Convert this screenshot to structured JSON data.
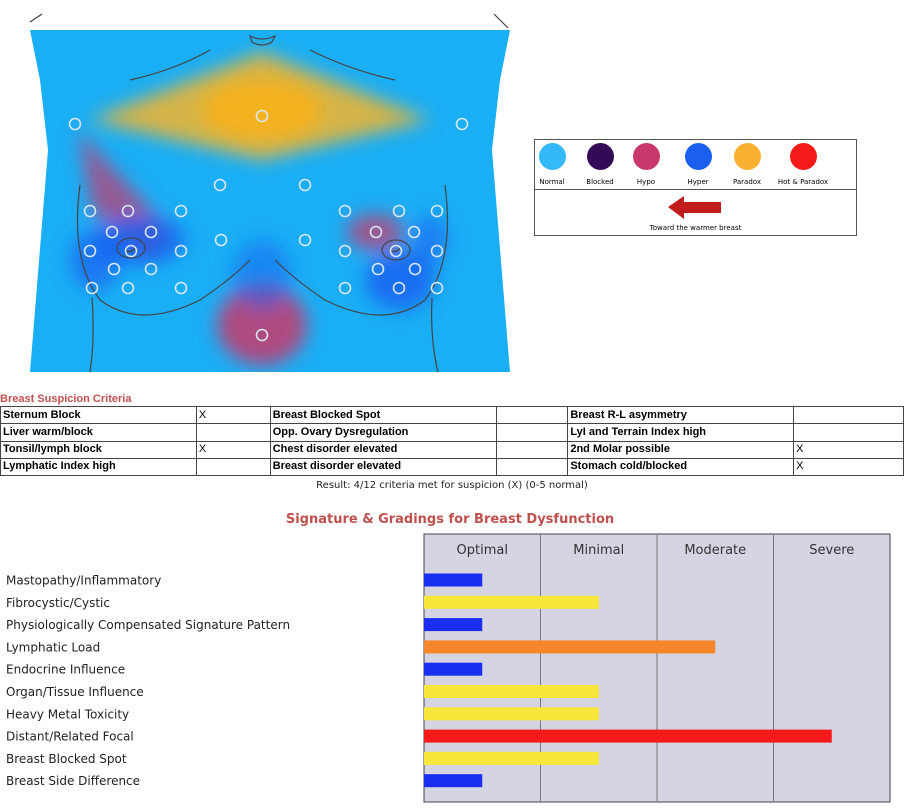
{
  "legend": {
    "items": [
      {
        "label": "Normal",
        "color": "#33b8f8"
      },
      {
        "label": "Blocked",
        "color": "#330a55"
      },
      {
        "label": "Hypo",
        "color": "#c8386c"
      },
      {
        "label": "Hyper",
        "color": "#1a5ff0"
      },
      {
        "label": "Paradox",
        "color": "#fbb02f"
      },
      {
        "label": "Hot & Paradox",
        "color": "#f41a1a"
      }
    ],
    "arrow_caption": "Toward the warmer breast",
    "arrow_icon": "left-arrow-icon",
    "arrow_color": "#c21d1d"
  },
  "thermogram": {
    "base_color": "#1aaef5"
  },
  "criteria": {
    "title": "Breast Suspicion Criteria",
    "rows": [
      [
        {
          "label": "Sternum Block",
          "mark": "X"
        },
        {
          "label": "Breast Blocked Spot",
          "mark": ""
        },
        {
          "label": "Breast R-L asymmetry",
          "mark": ""
        }
      ],
      [
        {
          "label": "Liver warm/block",
          "mark": ""
        },
        {
          "label": "Opp. Ovary Dysregulation",
          "mark": ""
        },
        {
          "label": "LyI and Terrain Index high",
          "mark": ""
        }
      ],
      [
        {
          "label": "Tonsil/lymph block",
          "mark": "X"
        },
        {
          "label": "Chest disorder elevated",
          "mark": ""
        },
        {
          "label": "2nd Molar possible",
          "mark": "X"
        }
      ],
      [
        {
          "label": "Lymphatic Index high",
          "mark": ""
        },
        {
          "label": "Breast disorder elevated",
          "mark": ""
        },
        {
          "label": "Stomach cold/blocked",
          "mark": "X"
        }
      ]
    ],
    "result": "Result: 4/12 criteria met for suspicion (X) (0-5 normal)"
  },
  "chart_data": {
    "type": "bar",
    "orientation": "horizontal",
    "title": "Signature & Gradings for Breast Dysfunction",
    "columns": [
      "Optimal",
      "Minimal",
      "Moderate",
      "Severe"
    ],
    "xlim": [
      0,
      4
    ],
    "grid": true,
    "categories": [
      "Mastopathy/Inflammatory",
      "Fibrocystic/Cystic",
      "Physiologically Compensated Signature Pattern",
      "Lymphatic Load",
      "Endocrine Influence",
      "Organ/Tissue Influence",
      "Heavy Metal Toxicity",
      "Distant/Related Focal",
      "Breast Blocked Spot",
      "Breast Side Difference"
    ],
    "values": [
      0.5,
      1.5,
      0.5,
      2.5,
      0.5,
      1.5,
      1.5,
      3.5,
      1.5,
      0.5
    ],
    "colors": [
      "#1a2ef0",
      "#f8e63a",
      "#1a2ef0",
      "#f5862a",
      "#1a2ef0",
      "#f8e63a",
      "#f8e63a",
      "#f41a1a",
      "#f8e63a",
      "#1a2ef0"
    ],
    "background": "#d4d4e2"
  }
}
